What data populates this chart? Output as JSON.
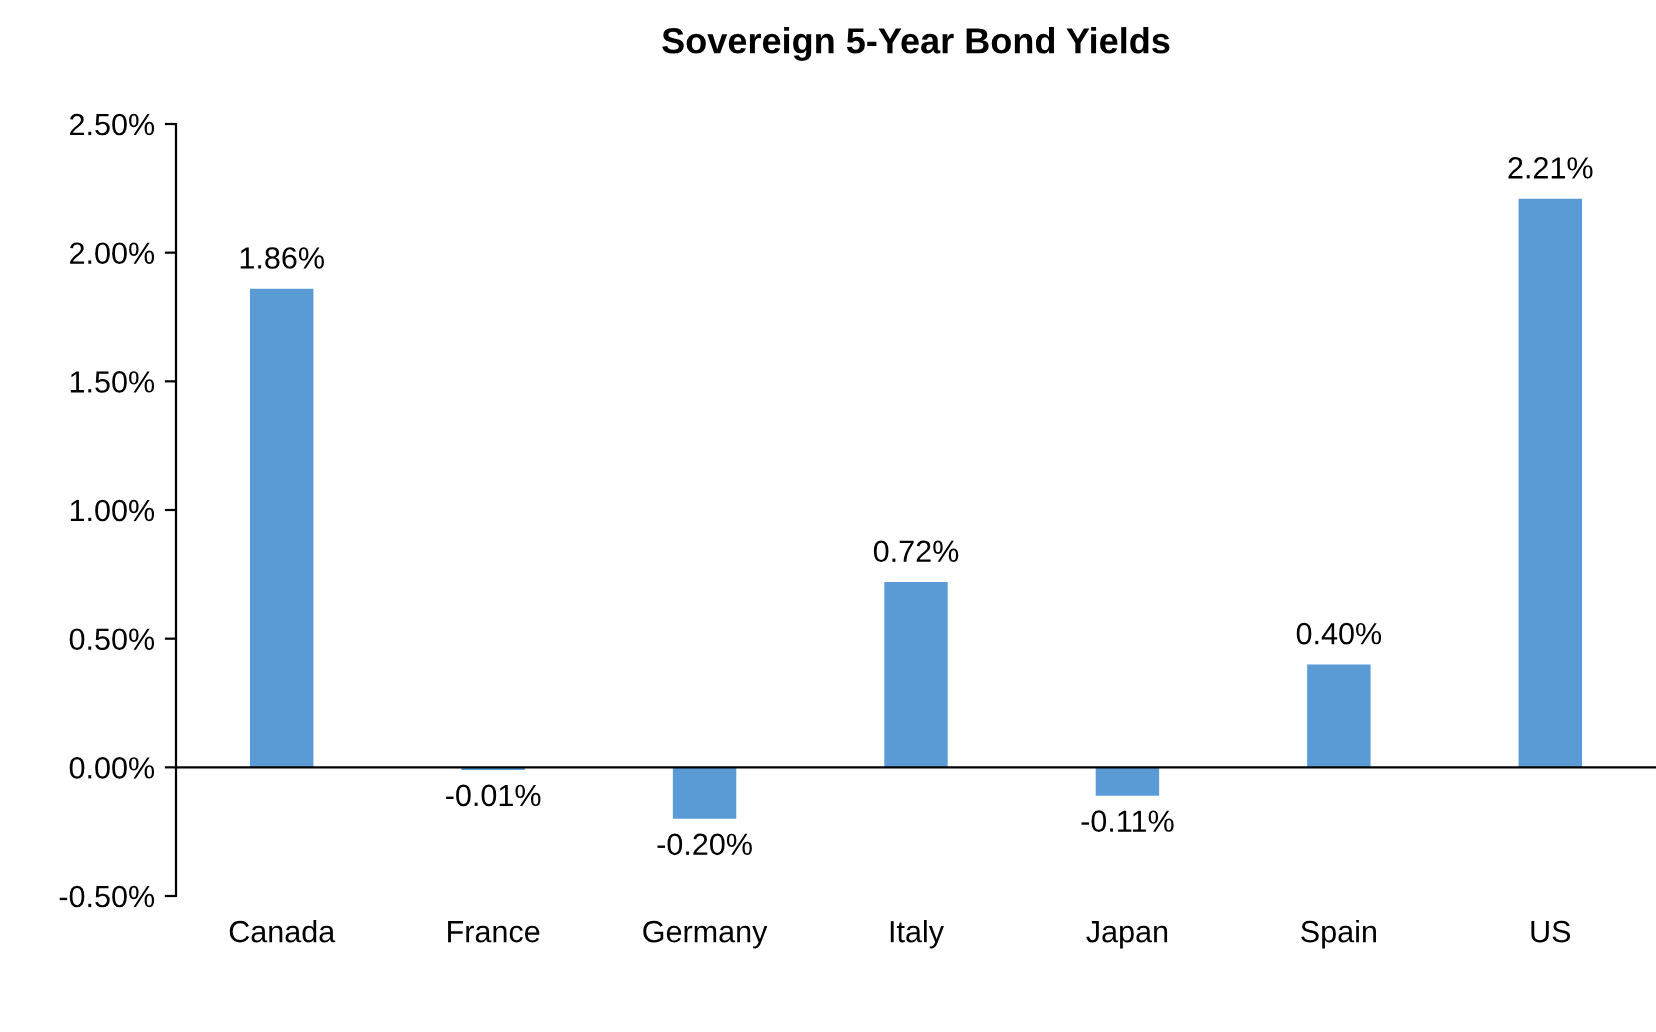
{
  "chart_data": {
    "type": "bar",
    "title": "Sovereign 5-Year Bond Yields",
    "categories": [
      "Canada",
      "France",
      "Germany",
      "Italy",
      "Japan",
      "Spain",
      "US"
    ],
    "values": [
      1.86,
      -0.01,
      -0.2,
      0.72,
      -0.11,
      0.4,
      2.21
    ],
    "value_labels": [
      "1.86%",
      "-0.01%",
      "-0.20%",
      "0.72%",
      "-0.11%",
      "0.40%",
      "2.21%"
    ],
    "color": "#5b9bd5",
    "ylim": [
      -0.5,
      2.5
    ],
    "yticks": [
      {
        "value": -0.5,
        "label": "-0.50%"
      },
      {
        "value": 0,
        "label": "0.00%"
      },
      {
        "value": 0.5,
        "label": "0.50%"
      },
      {
        "value": 1.0,
        "label": "1.00%"
      },
      {
        "value": 1.5,
        "label": "1.50%"
      },
      {
        "value": 2.0,
        "label": "2.00%"
      },
      {
        "value": 2.5,
        "label": "2.50%"
      }
    ],
    "line_style": "solid"
  }
}
